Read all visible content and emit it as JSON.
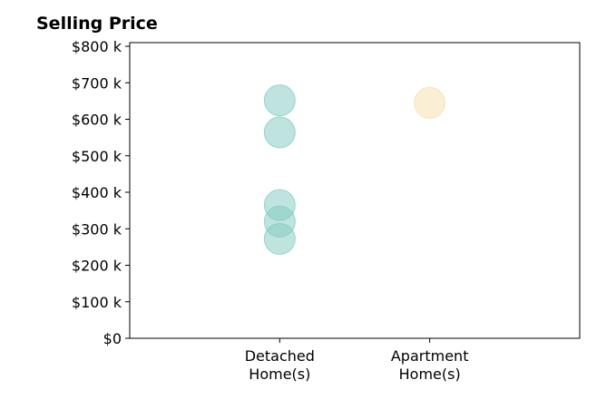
{
  "chart_data": {
    "type": "scatter",
    "title": "Selling Price",
    "xlabel": "",
    "ylabel": "",
    "categories": [
      [
        "Detached",
        "Home(s)"
      ],
      [
        "Apartment",
        "Home(s)"
      ]
    ],
    "ylim": [
      0,
      810000
    ],
    "xlim": [
      -1,
      2
    ],
    "yticks": [
      0,
      100000,
      200000,
      300000,
      400000,
      500000,
      600000,
      700000,
      800000
    ],
    "ytick_labels": [
      "$0",
      "$100 k",
      "$200 k",
      "$300 k",
      "$400 k",
      "$500 k",
      "$600 k",
      "$700 k",
      "$800 k"
    ],
    "grid": false,
    "legend": "none",
    "series": [
      {
        "category_index": 0,
        "color": "#7fc9c0",
        "values": [
          652000,
          564000,
          365000,
          320000,
          272000
        ]
      },
      {
        "category_index": 1,
        "color": "#f5deaa",
        "values": [
          645000
        ]
      }
    ]
  }
}
